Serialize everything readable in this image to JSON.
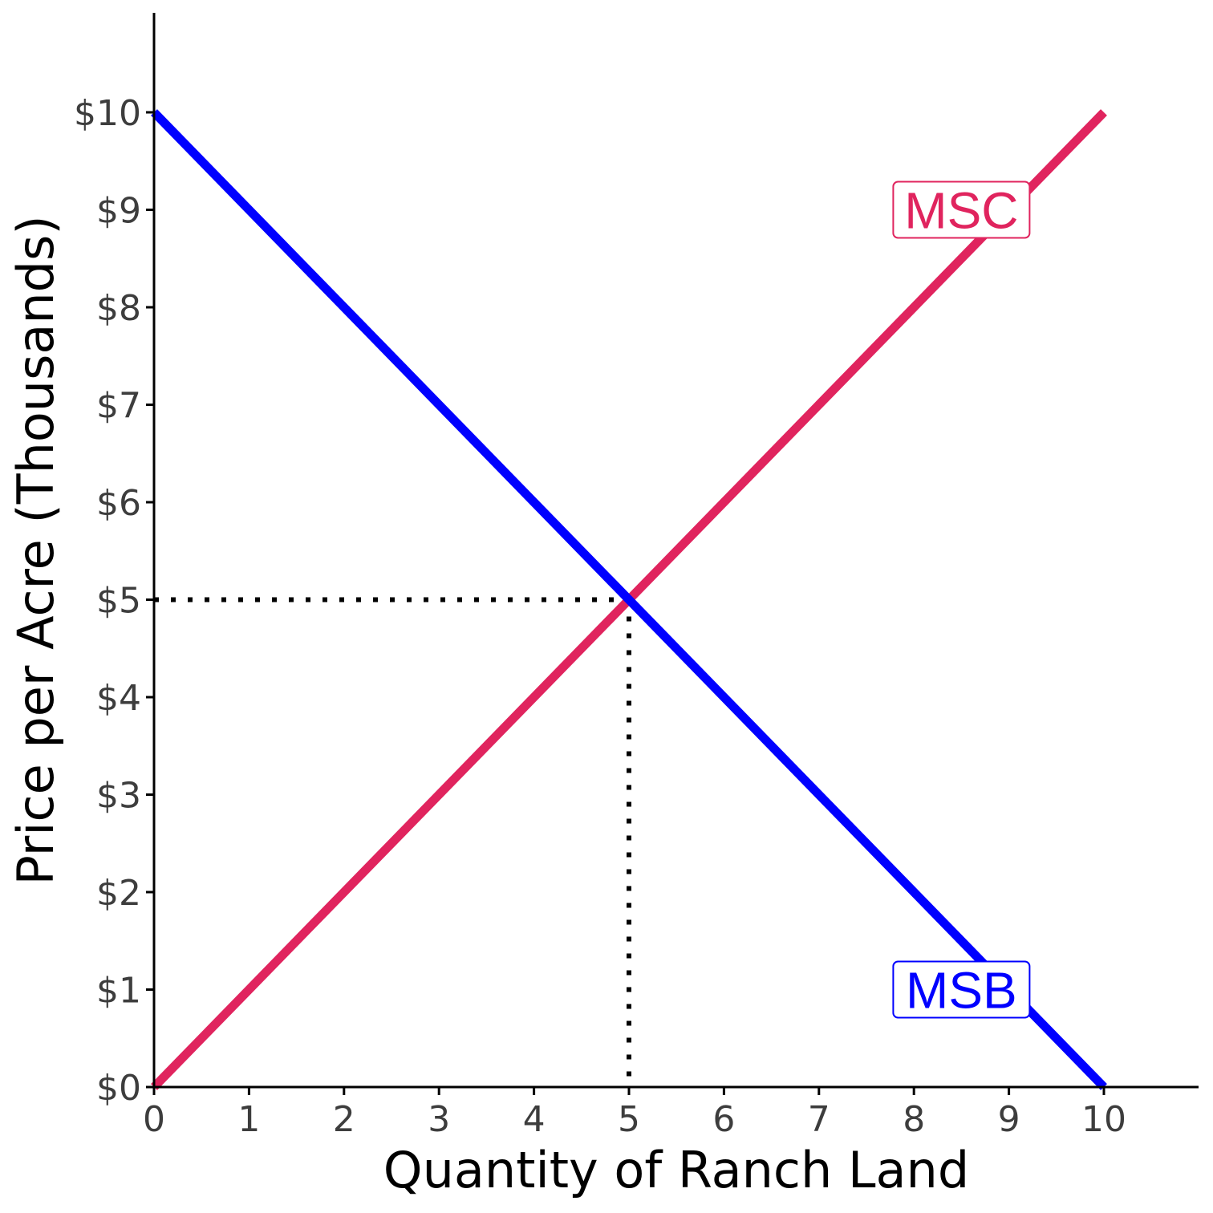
{
  "chart_data": {
    "type": "line",
    "title": "",
    "xlabel": "Quantity of Ranch Land",
    "ylabel": "Price per Acre (Thousands)",
    "xlim": [
      0,
      11
    ],
    "ylim": [
      0,
      11
    ],
    "x_ticks": [
      0,
      1,
      2,
      3,
      4,
      5,
      6,
      7,
      8,
      9,
      10
    ],
    "x_tick_labels": [
      "0",
      "1",
      "2",
      "3",
      "4",
      "5",
      "6",
      "7",
      "8",
      "9",
      "10"
    ],
    "y_ticks": [
      0,
      1,
      2,
      3,
      4,
      5,
      6,
      7,
      8,
      9,
      10
    ],
    "y_tick_labels": [
      "$0",
      "$1",
      "$2",
      "$3",
      "$4",
      "$5",
      "$6",
      "$7",
      "$8",
      "$9",
      "$10"
    ],
    "grid": false,
    "series": [
      {
        "name": "MSC",
        "color": "#e0245e",
        "x": [
          0,
          10
        ],
        "y": [
          0,
          10
        ],
        "label_at": [
          8.5,
          9
        ]
      },
      {
        "name": "MSB",
        "color": "#0000ff",
        "x": [
          0,
          10
        ],
        "y": [
          10,
          0
        ],
        "label_at": [
          8.5,
          1
        ]
      }
    ],
    "equilibrium": {
      "x": 5,
      "y": 5
    }
  }
}
